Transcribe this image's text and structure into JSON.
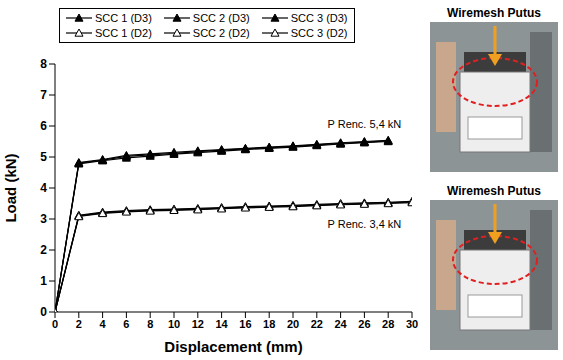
{
  "chart_data": {
    "type": "line",
    "x_label": "Displacement (mm)",
    "y_label": "Load (kN)",
    "x": [
      0,
      2,
      4,
      6,
      8,
      10,
      12,
      14,
      16,
      18,
      20,
      22,
      24,
      26,
      28,
      30
    ],
    "xlim": [
      0,
      30
    ],
    "xticks": [
      0,
      2,
      4,
      6,
      8,
      10,
      12,
      14,
      16,
      18,
      20,
      22,
      24,
      26,
      28,
      30
    ],
    "ylim": [
      0,
      8
    ],
    "yticks": [
      0,
      1,
      2,
      3,
      4,
      5,
      6,
      7,
      8
    ],
    "grid": false,
    "legend": "top",
    "series": [
      {
        "name": "SCC 1 (D3)",
        "color": "#000000",
        "marker": "triangle",
        "line_style": "solid",
        "values": [
          0,
          4.8,
          4.9,
          5.02,
          5.07,
          5.12,
          5.17,
          5.22,
          5.26,
          5.3,
          5.34,
          5.39,
          5.44,
          5.48,
          5.52,
          null
        ]
      },
      {
        "name": "SCC 2 (D3)",
        "color": "#000000",
        "marker": "triangle",
        "line_style": "solid",
        "values": [
          0,
          4.78,
          4.88,
          4.97,
          5.03,
          5.09,
          5.14,
          5.19,
          5.24,
          5.28,
          5.32,
          5.37,
          5.42,
          5.46,
          5.5,
          null
        ]
      },
      {
        "name": "SCC 3 (D3)",
        "color": "#000000",
        "marker": "triangle",
        "line_style": "solid",
        "values": [
          0,
          4.82,
          4.92,
          5.05,
          5.1,
          5.15,
          5.2,
          5.24,
          5.28,
          5.32,
          5.36,
          5.41,
          5.46,
          5.5,
          5.54,
          null
        ]
      },
      {
        "name": "SCC 1 (D2)",
        "color": "#000000",
        "marker": "triangle_open",
        "line_style": "solid",
        "values": [
          0,
          3.1,
          3.2,
          3.25,
          3.28,
          3.3,
          3.32,
          3.35,
          3.38,
          3.4,
          3.42,
          3.45,
          3.48,
          3.5,
          3.52,
          3.55
        ]
      },
      {
        "name": "SCC 2 (D2)",
        "color": "#000000",
        "marker": "triangle_open",
        "line_style": "solid",
        "values": [
          0,
          3.12,
          3.22,
          3.27,
          3.3,
          3.32,
          3.34,
          3.37,
          3.4,
          3.42,
          3.44,
          3.47,
          3.5,
          3.52,
          3.54,
          3.57
        ]
      },
      {
        "name": "SCC 3 (D2)",
        "color": "#000000",
        "marker": "triangle_open",
        "line_style": "solid",
        "values": [
          0,
          3.08,
          3.18,
          3.23,
          3.26,
          3.28,
          3.3,
          3.33,
          3.36,
          3.38,
          3.4,
          3.43,
          3.46,
          3.48,
          3.5,
          3.53
        ]
      }
    ],
    "annotations": [
      {
        "text": "P Renc. 5,4 kN",
        "x": 26,
        "y": 6.05
      },
      {
        "text": "P Renc. 3,4 kN",
        "x": 26,
        "y": 2.85
      }
    ]
  },
  "photos": [
    {
      "label": "Wiremesh Putus"
    },
    {
      "label": "Wiremesh Putus"
    }
  ]
}
